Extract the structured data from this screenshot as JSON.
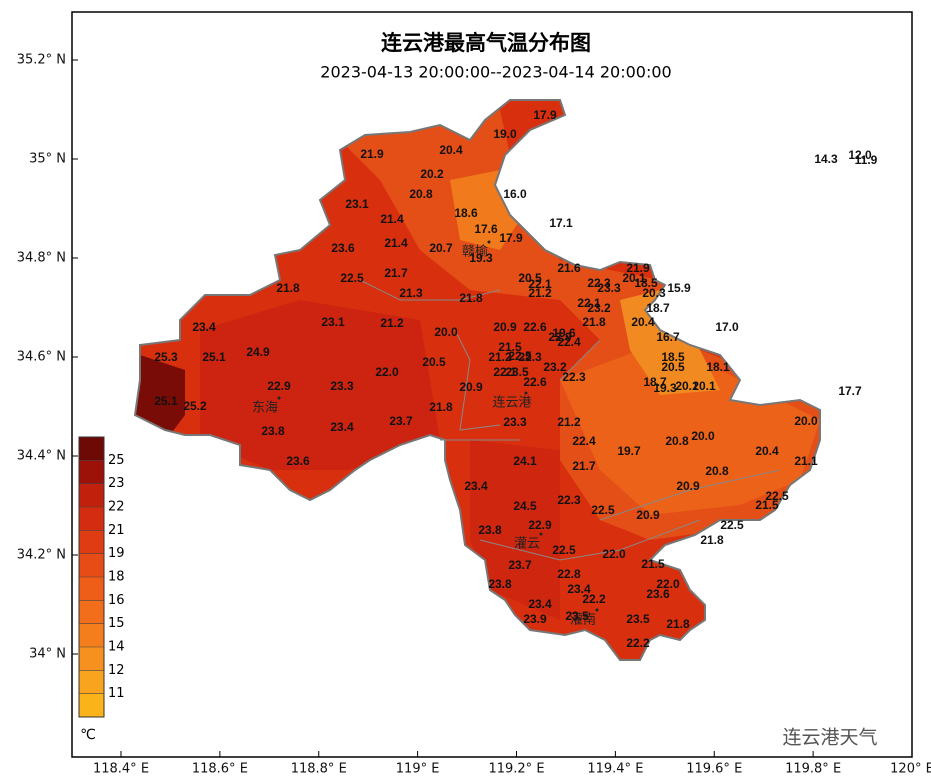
{
  "title": "连云港最高气温分布图",
  "subtitle": "2023-04-13 20:00:00--2023-04-14 20:00:00",
  "axes": {
    "xticks": [
      {
        "value": 118.4,
        "label": "118.4° E"
      },
      {
        "value": 118.6,
        "label": "118.6° E"
      },
      {
        "value": 118.8,
        "label": "118.8° E"
      },
      {
        "value": 119,
        "label": "119° E"
      },
      {
        "value": 119.2,
        "label": "119.2° E"
      },
      {
        "value": 119.4,
        "label": "119.4° E"
      },
      {
        "value": 119.6,
        "label": "119.6° E"
      },
      {
        "value": 119.8,
        "label": "119.8° E"
      },
      {
        "value": 120,
        "label": "120° E"
      }
    ],
    "yticks": [
      {
        "value": 34,
        "label": "34° N"
      },
      {
        "value": 34.2,
        "label": "34.2° N"
      },
      {
        "value": 34.4,
        "label": "34.4° N"
      },
      {
        "value": 34.6,
        "label": "34.6° N"
      },
      {
        "value": 34.8,
        "label": "34.8° N"
      },
      {
        "value": 35,
        "label": "35° N"
      },
      {
        "value": 35.2,
        "label": "35.2° N"
      }
    ]
  },
  "legend": {
    "unit": "℃",
    "labels": [
      "25",
      "23",
      "22",
      "21",
      "19",
      "18",
      "16",
      "15",
      "14",
      "12",
      "11"
    ]
  },
  "cities": [
    "东海",
    "赣榆",
    "连云港",
    "灌云",
    "灌南"
  ],
  "stations": [
    "17.9",
    "19.0",
    "20.4",
    "21.9",
    "20.2",
    "20.8",
    "16.0",
    "14.3",
    "12.0",
    "11.9",
    "23.1",
    "18.6",
    "21.4",
    "17.1",
    "17.6",
    "17.9",
    "23.6",
    "21.4",
    "20.7",
    "19.3",
    "22.5",
    "21.7",
    "20.5",
    "22.1",
    "21.6",
    "21.9",
    "21.8",
    "21.3",
    "21.8",
    "21.2",
    "22.3",
    "23.3",
    "20.1",
    "18.5",
    "20.3",
    "15.9",
    "22.1",
    "23.2",
    "18.7",
    "23.4",
    "23.1",
    "21.2",
    "20.0",
    "20.9",
    "22.6",
    "21.8",
    "20.4",
    "17.0",
    "19.6",
    "22.9",
    "22.4",
    "16.7",
    "21.5",
    "25.3",
    "25.1",
    "24.9",
    "21.2",
    "22.5",
    "22.3",
    "18.5",
    "20.5",
    "22.0",
    "23.2",
    "20.5",
    "18.1",
    "22.1",
    "23.5",
    "22.3",
    "18.7",
    "19.3",
    "20.1",
    "20.1",
    "22.9",
    "23.3",
    "20.9",
    "22.6",
    "17.7",
    "25.1",
    "25.2",
    "21.8",
    "23.7",
    "20.0",
    "23.8",
    "23.4",
    "23.3",
    "21.2",
    "20.8",
    "20.0",
    "22.4",
    "19.7",
    "20.4",
    "23.6",
    "24.1",
    "21.7",
    "21.1",
    "20.8",
    "23.4",
    "20.9",
    "22.5",
    "24.5",
    "22.3",
    "22.5",
    "21.5",
    "20.9",
    "22.9",
    "22.5",
    "23.8",
    "21.8",
    "22.5",
    "22.0",
    "23.7",
    "21.5",
    "22.8",
    "23.8",
    "22.0",
    "23.4",
    "23.6",
    "22.2",
    "23.4",
    "23.5",
    "23.9",
    "23.5",
    "21.8",
    "22.2"
  ],
  "watermark": "连云港天气"
}
